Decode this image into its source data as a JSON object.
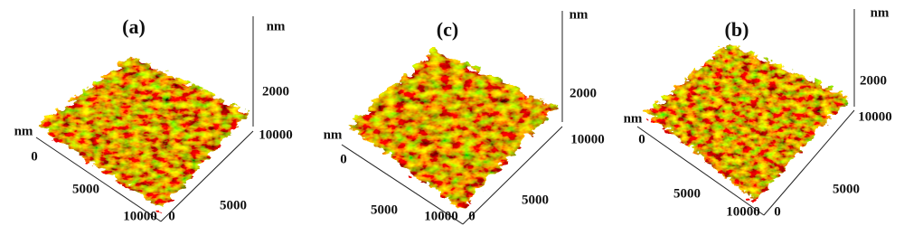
{
  "panels": [
    {
      "label": "(a)",
      "z_unit": "nm",
      "z_tick": 2000,
      "corner_tick": 10000,
      "x_unit": "nm",
      "x_ticks": [
        0,
        5000,
        10000
      ],
      "y_ticks": [
        0,
        5000
      ]
    },
    {
      "label": "(c)",
      "z_unit": "nm",
      "z_tick": 2000,
      "corner_tick": 10000,
      "x_unit": "nm",
      "x_ticks": [
        0,
        5000,
        10000
      ],
      "y_ticks": [
        0,
        5000
      ]
    },
    {
      "label": "(b)",
      "z_unit": "nm",
      "z_tick": 2000,
      "corner_tick": 10000,
      "x_unit": "nm",
      "x_ticks": [
        0,
        5000,
        10000
      ],
      "y_ticks": [
        0,
        5000
      ]
    }
  ]
}
